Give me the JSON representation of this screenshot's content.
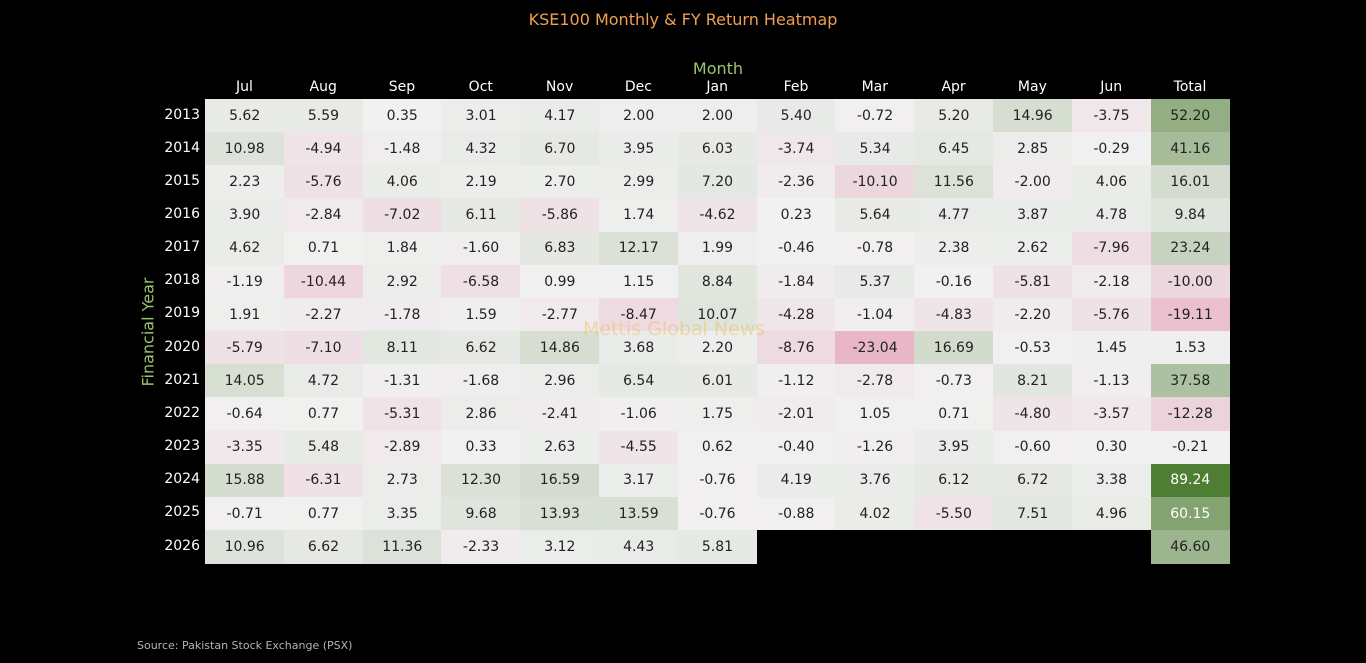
{
  "chart_data": {
    "type": "heatmap",
    "title": "KSE100 Monthly & FY Return Heatmap",
    "xlabel": "Month",
    "ylabel": "Financial Year",
    "columns": [
      "Jul",
      "Aug",
      "Sep",
      "Oct",
      "Nov",
      "Dec",
      "Jan",
      "Feb",
      "Mar",
      "Apr",
      "May",
      "Jun",
      "Total"
    ],
    "rows": [
      "2013",
      "2014",
      "2015",
      "2016",
      "2017",
      "2018",
      "2019",
      "2020",
      "2021",
      "2022",
      "2023",
      "2024",
      "2025",
      "2026"
    ],
    "values": [
      [
        "5.62",
        "5.59",
        "0.35",
        "3.01",
        "4.17",
        "2.00",
        "2.00",
        "5.40",
        "-0.72",
        "5.20",
        "14.96",
        "-3.75",
        "52.20"
      ],
      [
        "10.98",
        "-4.94",
        "-1.48",
        "4.32",
        "6.70",
        "3.95",
        "6.03",
        "-3.74",
        "5.34",
        "6.45",
        "2.85",
        "-0.29",
        "41.16"
      ],
      [
        "2.23",
        "-5.76",
        "4.06",
        "2.19",
        "2.70",
        "2.99",
        "7.20",
        "-2.36",
        "-10.10",
        "11.56",
        "-2.00",
        "4.06",
        "16.01"
      ],
      [
        "3.90",
        "-2.84",
        "-7.02",
        "6.11",
        "-5.86",
        "1.74",
        "-4.62",
        "0.23",
        "5.64",
        "4.77",
        "3.87",
        "4.78",
        "9.84"
      ],
      [
        "4.62",
        "0.71",
        "1.84",
        "-1.60",
        "6.83",
        "12.17",
        "1.99",
        "-0.46",
        "-0.78",
        "2.38",
        "2.62",
        "-7.96",
        "23.24"
      ],
      [
        "-1.19",
        "-10.44",
        "2.92",
        "-6.58",
        "0.99",
        "1.15",
        "8.84",
        "-1.84",
        "5.37",
        "-0.16",
        "-5.81",
        "-2.18",
        "-10.00"
      ],
      [
        "1.91",
        "-2.27",
        "-1.78",
        "1.59",
        "-2.77",
        "-8.47",
        "10.07",
        "-4.28",
        "-1.04",
        "-4.83",
        "-2.20",
        "-5.76",
        "-19.11"
      ],
      [
        "-5.79",
        "-7.10",
        "8.11",
        "6.62",
        "14.86",
        "3.68",
        "2.20",
        "-8.76",
        "-23.04",
        "16.69",
        "-0.53",
        "1.45",
        "1.53"
      ],
      [
        "14.05",
        "4.72",
        "-1.31",
        "-1.68",
        "2.96",
        "6.54",
        "6.01",
        "-1.12",
        "-2.78",
        "-0.73",
        "8.21",
        "-1.13",
        "37.58"
      ],
      [
        "-0.64",
        "0.77",
        "-5.31",
        "2.86",
        "-2.41",
        "-1.06",
        "1.75",
        "-2.01",
        "1.05",
        "0.71",
        "-4.80",
        "-3.57",
        "-12.28"
      ],
      [
        "-3.35",
        "5.48",
        "-2.89",
        "0.33",
        "2.63",
        "-4.55",
        "0.62",
        "-0.40",
        "-1.26",
        "3.95",
        "-0.60",
        "0.30",
        "-0.21"
      ],
      [
        "15.88",
        "-6.31",
        "2.73",
        "12.30",
        "16.59",
        "3.17",
        "-0.76",
        "4.19",
        "3.76",
        "6.12",
        "6.72",
        "3.38",
        "89.24"
      ],
      [
        "-0.71",
        "0.77",
        "3.35",
        "9.68",
        "13.93",
        "13.59",
        "-0.76",
        "-0.88",
        "4.02",
        "-5.50",
        "7.51",
        "4.96",
        "60.15"
      ],
      [
        "10.96",
        "6.62",
        "11.36",
        "-2.33",
        "3.12",
        "4.43",
        "5.81",
        null,
        null,
        null,
        null,
        null,
        "46.60"
      ]
    ],
    "colors": {
      "positive": "#4e7e33",
      "negative": "#e8b6c8",
      "neutral": "#f1f1f1",
      "background": "#000000"
    }
  },
  "source": "Source: Pakistan Stock Exchange (PSX)",
  "watermark": "Mettis Global News"
}
